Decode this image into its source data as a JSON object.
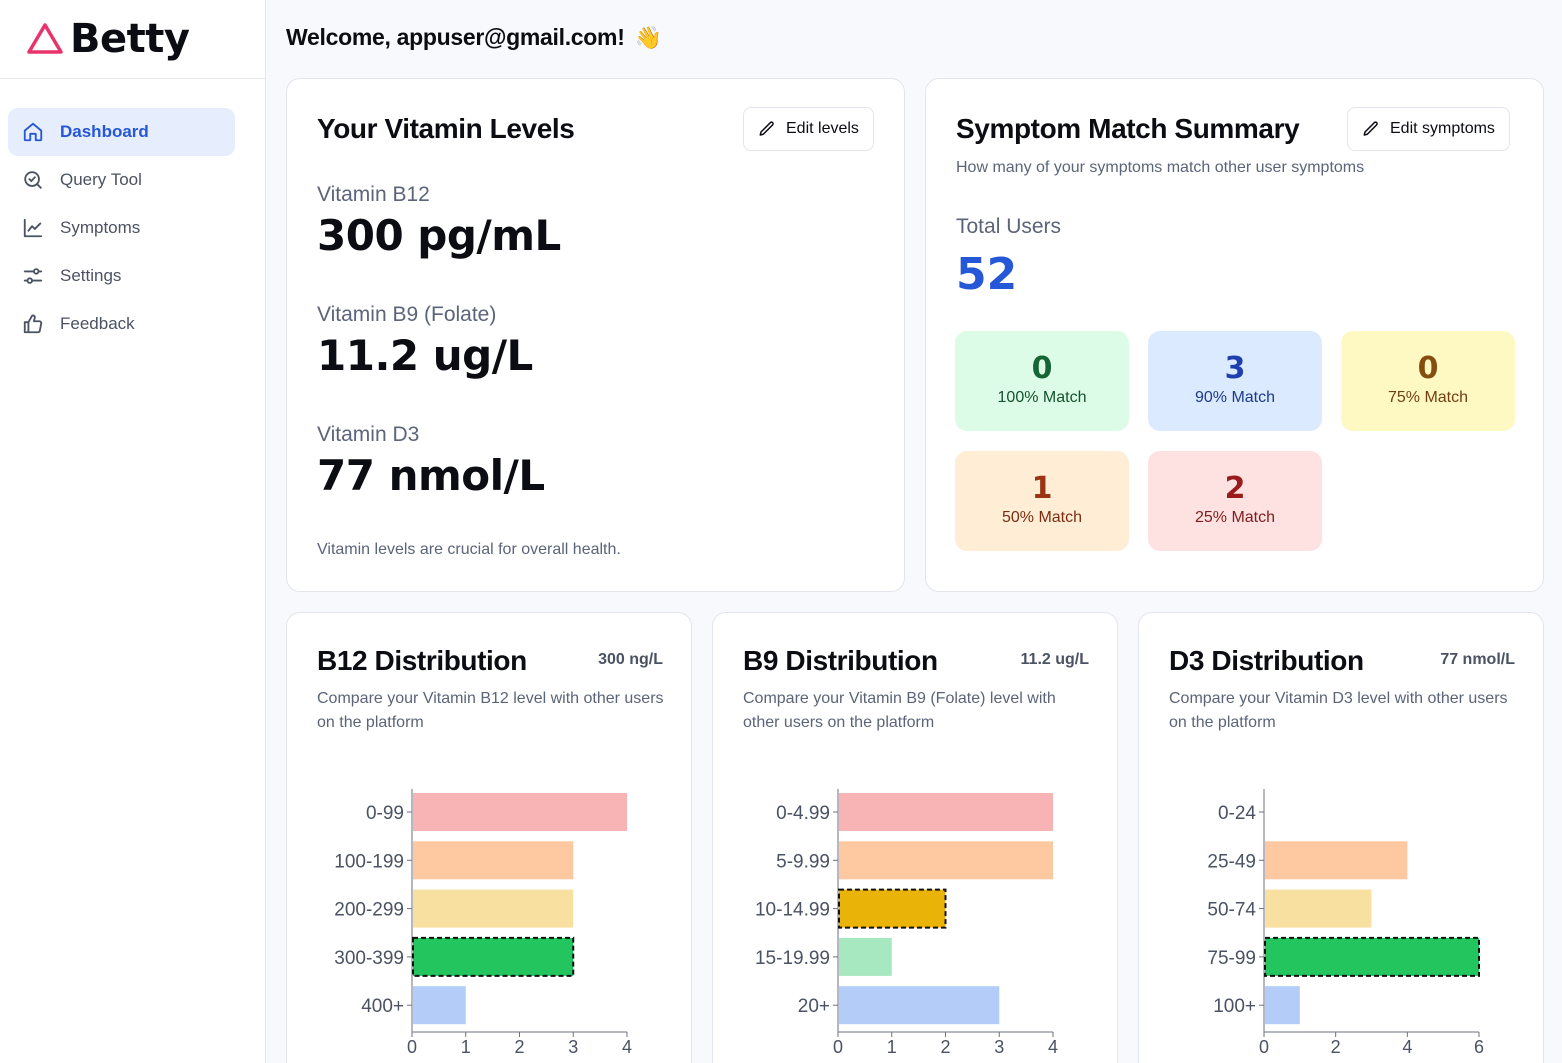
{
  "brand": {
    "name": "Betty",
    "color": "#e8336b"
  },
  "sidebar": {
    "items": [
      {
        "label": "Dashboard",
        "icon": "home-icon",
        "active": true
      },
      {
        "label": "Query Tool",
        "icon": "search-check-icon"
      },
      {
        "label": "Symptoms",
        "icon": "line-chart-icon"
      },
      {
        "label": "Settings",
        "icon": "sliders-icon"
      },
      {
        "label": "Feedback",
        "icon": "thumbs-up-icon"
      }
    ]
  },
  "header": {
    "welcome": "Welcome, appuser@gmail.com!",
    "emoji": "👋"
  },
  "vitamins": {
    "title": "Your Vitamin Levels",
    "edit_label": "Edit levels",
    "items": [
      {
        "label": "Vitamin B12",
        "value": "300 pg/mL"
      },
      {
        "label": "Vitamin B9 (Folate)",
        "value": "11.2 ug/L"
      },
      {
        "label": "Vitamin D3",
        "value": "77 nmol/L"
      }
    ],
    "note": "Vitamin levels are crucial for overall health."
  },
  "symptoms": {
    "title": "Symptom Match Summary",
    "edit_label": "Edit symptoms",
    "subtitle": "How many of your symptoms match other user symptoms",
    "total_label": "Total Users",
    "total_value": "52",
    "matches": [
      {
        "count": "0",
        "label": "100% Match",
        "bg": "#dcfce7",
        "fg": "#166534",
        "fgLabel": "#14532d"
      },
      {
        "count": "3",
        "label": "90% Match",
        "bg": "#dbeafe",
        "fg": "#1e40af",
        "fgLabel": "#1e3a8a"
      },
      {
        "count": "0",
        "label": "75% Match",
        "bg": "#fef9c3",
        "fg": "#854d0e",
        "fgLabel": "#713f12"
      },
      {
        "count": "1",
        "label": "50% Match",
        "bg": "#ffedd5",
        "fg": "#9a3412",
        "fgLabel": "#7c2d12"
      },
      {
        "count": "2",
        "label": "25% Match",
        "bg": "#fee2e2",
        "fg": "#991b1b",
        "fgLabel": "#7f1d1d"
      }
    ]
  },
  "distributions": [
    {
      "title": "B12 Distribution",
      "unit": "300 ng/L",
      "subtitle": "Compare your Vitamin B12 level with other users on the platform"
    },
    {
      "title": "B9 Distribution",
      "unit": "11.2 ug/L",
      "subtitle": "Compare your Vitamin B9 (Folate) level with other users on the platform"
    },
    {
      "title": "D3 Distribution",
      "unit": "77 nmol/L",
      "subtitle": "Compare your Vitamin D3 level with other users on the platform"
    }
  ],
  "chart_data": [
    {
      "type": "bar",
      "orientation": "horizontal",
      "categories": [
        "0-99",
        "100-199",
        "200-299",
        "300-399",
        "400+"
      ],
      "values": [
        4,
        3,
        3,
        3,
        1
      ],
      "highlight": "300-399",
      "colors": [
        "#f8b4b4",
        "#fec8a0",
        "#f8e0a0",
        "#22c55e",
        "#b3ccf8"
      ],
      "xticks": [
        0,
        1,
        2,
        3,
        4
      ],
      "xlim": [
        0,
        4
      ]
    },
    {
      "type": "bar",
      "orientation": "horizontal",
      "categories": [
        "0-4.99",
        "5-9.99",
        "10-14.99",
        "15-19.99",
        "20+"
      ],
      "values": [
        4,
        4,
        2,
        1,
        3
      ],
      "highlight": "10-14.99",
      "colors": [
        "#f8b4b4",
        "#fec8a0",
        "#eab308",
        "#a8e8c0",
        "#b3ccf8"
      ],
      "xticks": [
        0,
        1,
        2,
        3,
        4
      ],
      "xlim": [
        0,
        4
      ]
    },
    {
      "type": "bar",
      "orientation": "horizontal",
      "categories": [
        "0-24",
        "25-49",
        "50-74",
        "75-99",
        "100+"
      ],
      "values": [
        0,
        4,
        3,
        6,
        1
      ],
      "highlight": "75-99",
      "colors": [
        "#f8b4b4",
        "#fec8a0",
        "#f8e0a0",
        "#22c55e",
        "#b3ccf8"
      ],
      "xticks": [
        0,
        2,
        4,
        6
      ],
      "xlim": [
        0,
        6
      ]
    }
  ]
}
